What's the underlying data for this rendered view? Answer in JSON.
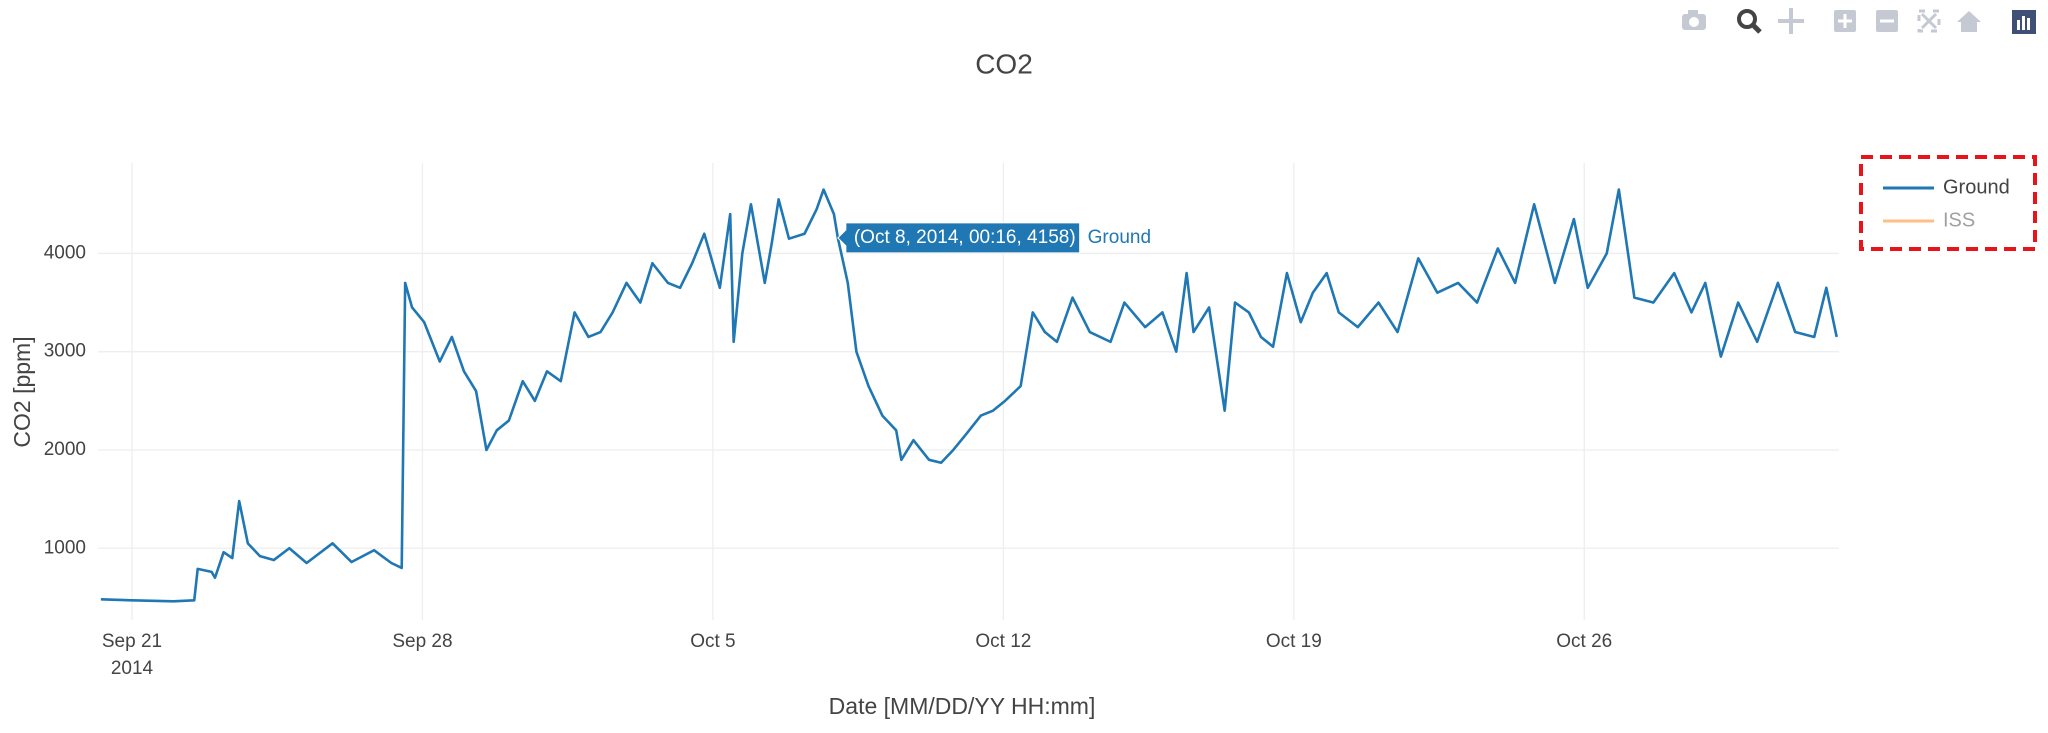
{
  "chart_data": {
    "type": "line",
    "title": "CO2",
    "x_label": "Date [MM/DD/YY HH:mm]",
    "y_label": "CO2 [ppm]",
    "x": [
      "2014-09-20 06:00",
      "2014-09-21 00:00",
      "2014-09-22 00:00",
      "2014-09-22 12:00",
      "2014-09-22 14:00",
      "2014-09-22 22:00",
      "2014-09-23 00:00",
      "2014-09-23 05:00",
      "2014-09-23 10:00",
      "2014-09-23 14:00",
      "2014-09-23 19:00",
      "2014-09-24 02:00",
      "2014-09-24 10:00",
      "2014-09-24 19:00",
      "2014-09-25 05:00",
      "2014-09-25 20:00",
      "2014-09-26 07:00",
      "2014-09-26 20:00",
      "2014-09-27 06:00",
      "2014-09-27 12:00",
      "2014-09-27 14:00",
      "2014-09-27 18:00",
      "2014-09-28 01:00",
      "2014-09-28 10:00",
      "2014-09-28 17:00",
      "2014-09-29 00:00",
      "2014-09-29 07:00",
      "2014-09-29 13:00",
      "2014-09-29 19:00",
      "2014-09-30 02:00",
      "2014-09-30 10:00",
      "2014-09-30 17:00",
      "2014-10-01 00:00",
      "2014-10-01 08:00",
      "2014-10-01 16:00",
      "2014-10-02 00:00",
      "2014-10-02 07:00",
      "2014-10-02 14:00",
      "2014-10-02 22:00",
      "2014-10-03 06:00",
      "2014-10-03 13:00",
      "2014-10-03 22:00",
      "2014-10-04 05:00",
      "2014-10-04 12:00",
      "2014-10-04 19:00",
      "2014-10-05 04:00",
      "2014-10-05 10:00",
      "2014-10-05 12:00",
      "2014-10-05 17:00",
      "2014-10-05 22:00",
      "2014-10-06 06:00",
      "2014-10-06 10:00",
      "2014-10-06 14:00",
      "2014-10-06 20:00",
      "2014-10-07 05:00",
      "2014-10-07 12:00",
      "2014-10-07 16:00",
      "2014-10-07 22:00",
      "2014-10-08 00:16",
      "2014-10-08 06:00",
      "2014-10-08 11:00",
      "2014-10-08 18:00",
      "2014-10-09 02:00",
      "2014-10-09 10:00",
      "2014-10-09 13:00",
      "2014-10-09 20:00",
      "2014-10-10 05:00",
      "2014-10-10 12:00",
      "2014-10-10 19:00",
      "2014-10-11 02:00",
      "2014-10-11 11:00",
      "2014-10-11 18:00",
      "2014-10-12 01:00",
      "2014-10-12 10:00",
      "2014-10-12 17:00",
      "2014-10-13 00:00",
      "2014-10-13 07:00",
      "2014-10-13 16:00",
      "2014-10-14 02:00",
      "2014-10-14 14:00",
      "2014-10-14 22:00",
      "2014-10-15 10:00",
      "2014-10-15 20:00",
      "2014-10-16 04:00",
      "2014-10-16 10:00",
      "2014-10-16 14:00",
      "2014-10-16 23:00",
      "2014-10-17 08:00",
      "2014-10-17 14:00",
      "2014-10-17 22:00",
      "2014-10-18 05:00",
      "2014-10-18 12:00",
      "2014-10-18 20:00",
      "2014-10-19 04:00",
      "2014-10-19 11:00",
      "2014-10-19 19:00",
      "2014-10-20 02:00",
      "2014-10-20 13:00",
      "2014-10-21 01:00",
      "2014-10-21 12:00",
      "2014-10-22 00:00",
      "2014-10-22 11:00",
      "2014-10-22 23:00",
      "2014-10-23 10:00",
      "2014-10-23 22:00",
      "2014-10-24 08:00",
      "2014-10-24 19:00",
      "2014-10-25 07:00",
      "2014-10-25 18:00",
      "2014-10-26 02:00",
      "2014-10-26 13:00",
      "2014-10-26 20:00",
      "2014-10-27 05:00",
      "2014-10-27 16:00",
      "2014-10-28 04:00",
      "2014-10-28 14:00",
      "2014-10-28 22:00",
      "2014-10-29 07:00",
      "2014-10-29 17:00",
      "2014-10-30 04:00",
      "2014-10-30 16:00",
      "2014-10-31 02:00",
      "2014-10-31 13:00",
      "2014-10-31 20:00",
      "2014-11-01 02:00"
    ],
    "series": [
      {
        "name": "Ground",
        "color": "#1f77b4",
        "visible": true,
        "values": [
          480,
          470,
          460,
          470,
          790,
          760,
          700,
          960,
          900,
          1480,
          1050,
          920,
          880,
          1000,
          850,
          1050,
          860,
          980,
          850,
          800,
          3700,
          3450,
          3300,
          2900,
          3150,
          2800,
          2600,
          2000,
          2200,
          2300,
          2700,
          2500,
          2800,
          2700,
          3400,
          3150,
          3200,
          3400,
          3700,
          3500,
          3900,
          3700,
          3650,
          3900,
          4200,
          3650,
          4400,
          3100,
          4000,
          4500,
          3700,
          4100,
          4550,
          4150,
          4200,
          4450,
          4650,
          4400,
          4158,
          3700,
          3000,
          2650,
          2350,
          2200,
          1900,
          2100,
          1900,
          1870,
          2000,
          2150,
          2350,
          2400,
          2500,
          2650,
          3400,
          3200,
          3100,
          3550,
          3200,
          3100,
          3500,
          3250,
          3400,
          3000,
          3800,
          3200,
          3450,
          2400,
          3500,
          3400,
          3150,
          3050,
          3800,
          3300,
          3600,
          3800,
          3400,
          3250,
          3500,
          3200,
          3950,
          3600,
          3700,
          3500,
          4050,
          3700,
          4500,
          3700,
          4350,
          3650,
          4000,
          4650,
          3550,
          3500,
          3800,
          3400,
          3700,
          2950,
          3500,
          3100,
          3700,
          3200,
          3150,
          3650,
          3150
        ]
      },
      {
        "name": "ISS",
        "color": "#ff7f0e",
        "visible": "legendonly"
      }
    ],
    "xlim": [
      "2014-09-20 04:20",
      "2014-11-01 03:20"
    ],
    "xticks": [
      {
        "value": "2014-09-21",
        "label": "Sep 21\n2014"
      },
      {
        "value": "2014-09-28",
        "label": "Sep 28"
      },
      {
        "value": "2014-10-05",
        "label": "Oct 5"
      },
      {
        "value": "2014-10-12",
        "label": "Oct 12"
      },
      {
        "value": "2014-10-19",
        "label": "Oct 19"
      },
      {
        "value": "2014-10-26",
        "label": "Oct 26"
      }
    ],
    "ylim": [
      270,
      4920
    ],
    "yticks": [
      1000,
      2000,
      3000,
      4000
    ],
    "grid": true,
    "hover": {
      "x": "2014-10-08 00:16",
      "y": 4158,
      "label": "(Oct 8, 2014, 00:16, 4158)"
    }
  }
}
